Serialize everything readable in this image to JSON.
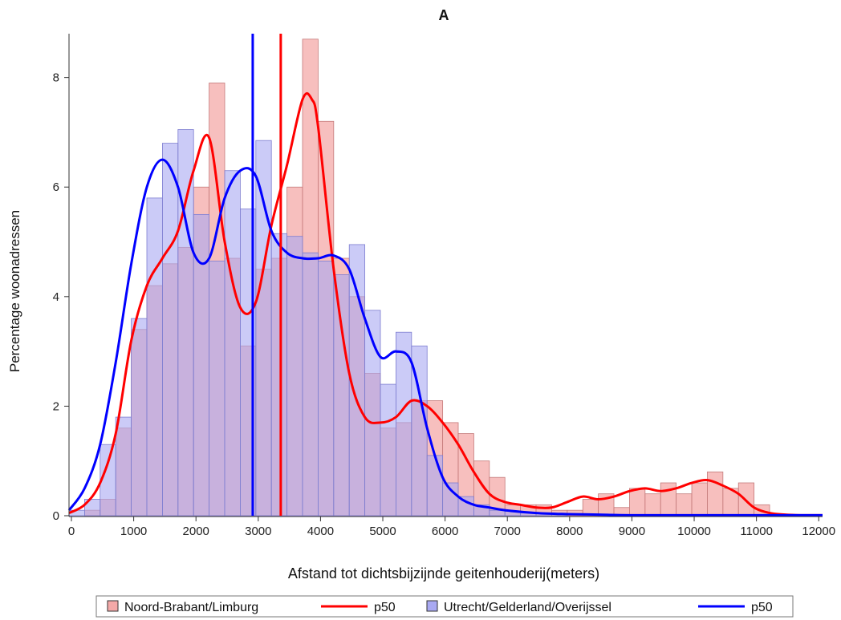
{
  "chart_data": {
    "type": "histogram",
    "title": "A",
    "xlabel": "Afstand tot dichtsbijzijnde geitenhouderij(meters)",
    "ylabel": "Percentage woonadressen",
    "xlim": [
      0,
      12100
    ],
    "ylim": [
      0,
      8.8
    ],
    "xticks": [
      0,
      1000,
      2000,
      3000,
      4000,
      5000,
      6000,
      7000,
      8000,
      9000,
      10000,
      11000,
      12000
    ],
    "yticks": [
      0,
      2,
      4,
      6,
      8
    ],
    "bin_width": 250,
    "legend_position": "bottom",
    "legend": [
      {
        "label": "Noord-Brabant/Limburg",
        "kind": "box",
        "color": "#f4a9a8"
      },
      {
        "label": "p50",
        "kind": "line",
        "color": "#ff0000"
      },
      {
        "label": "Utrecht/Gelderland/Overijssel",
        "kind": "box",
        "color": "#a9a9f2"
      },
      {
        "label": "p50",
        "kind": "line",
        "color": "#0000ff"
      }
    ],
    "series": [
      {
        "name": "Noord-Brabant/Limburg",
        "color": "#f4a9a8",
        "line_color": "#ff0000",
        "bins_start": [
          0,
          250,
          500,
          750,
          1000,
          1250,
          1500,
          1750,
          2000,
          2250,
          2500,
          2750,
          3000,
          3250,
          3500,
          3750,
          4000,
          4250,
          4500,
          4750,
          5000,
          5250,
          5500,
          5750,
          6000,
          6250,
          6500,
          6750,
          7000,
          7250,
          7500,
          7750,
          8000,
          8250,
          8500,
          8750,
          9000,
          9250,
          9500,
          9750,
          10000,
          10250,
          10500,
          10750,
          11000,
          11250
        ],
        "values": [
          0,
          0.1,
          0.3,
          1.6,
          3.4,
          4.2,
          4.6,
          4.9,
          6.0,
          7.9,
          4.7,
          3.1,
          4.5,
          4.7,
          6.0,
          8.7,
          7.2,
          4.7,
          4.0,
          2.6,
          1.6,
          1.7,
          2.1,
          2.1,
          1.7,
          1.5,
          1.0,
          0.7,
          0.2,
          0.2,
          0.2,
          0.1,
          0.1,
          0.3,
          0.4,
          0.15,
          0.5,
          0.4,
          0.6,
          0.4,
          0.6,
          0.8,
          0.5,
          0.6,
          0.2,
          0
        ],
        "median": 3400,
        "density": {
          "x": [
            0,
            250,
            500,
            750,
            1000,
            1250,
            1500,
            1750,
            2000,
            2250,
            2500,
            2750,
            3000,
            3250,
            3500,
            3750,
            3900,
            4000,
            4250,
            4500,
            4750,
            5000,
            5250,
            5500,
            5750,
            6000,
            6250,
            6500,
            6750,
            7000,
            7250,
            7500,
            7750,
            8000,
            8250,
            8500,
            8750,
            9000,
            9250,
            9500,
            9750,
            10000,
            10250,
            10500,
            10750,
            11000,
            11250,
            11500,
            11750,
            12100
          ],
          "y": [
            0.05,
            0.2,
            0.6,
            1.5,
            3.2,
            4.2,
            4.7,
            5.2,
            6.3,
            6.9,
            5.0,
            3.8,
            3.9,
            5.3,
            6.4,
            7.6,
            7.6,
            7.1,
            4.5,
            2.6,
            1.8,
            1.7,
            1.8,
            2.1,
            2.0,
            1.7,
            1.3,
            0.8,
            0.4,
            0.25,
            0.2,
            0.15,
            0.15,
            0.25,
            0.35,
            0.3,
            0.35,
            0.45,
            0.5,
            0.45,
            0.5,
            0.6,
            0.65,
            0.55,
            0.4,
            0.15,
            0.05,
            0.02,
            0.01,
            0.01
          ]
        }
      },
      {
        "name": "Utrecht/Gelderland/Overijssel",
        "color": "#a9a9f2",
        "line_color": "#0000ff",
        "bins_start": [
          0,
          250,
          500,
          750,
          1000,
          1250,
          1500,
          1750,
          2000,
          2250,
          2500,
          2750,
          3000,
          3250,
          3500,
          3750,
          4000,
          4250,
          4500,
          4750,
          5000,
          5250,
          5500,
          5750,
          6000,
          6250,
          6500,
          6750,
          7000,
          7250,
          7500,
          7750
        ],
        "values": [
          0.1,
          0.3,
          1.3,
          1.8,
          3.6,
          5.8,
          6.8,
          7.05,
          5.5,
          4.65,
          6.3,
          5.6,
          6.85,
          5.15,
          5.1,
          4.8,
          4.65,
          4.4,
          4.95,
          3.75,
          2.4,
          3.35,
          3.1,
          1.1,
          0.6,
          0.35,
          0.2,
          0.1,
          0.08,
          0.05,
          0.05,
          0.03
        ],
        "median": 2950,
        "density": {
          "x": [
            0,
            250,
            500,
            750,
            1000,
            1250,
            1500,
            1750,
            2000,
            2250,
            2500,
            2750,
            3000,
            3250,
            3500,
            3750,
            4000,
            4250,
            4500,
            4750,
            5000,
            5250,
            5500,
            5750,
            6000,
            6250,
            6500,
            6750,
            7000,
            7500,
            8000,
            8500,
            9000,
            10000,
            11000,
            12100
          ],
          "y": [
            0.1,
            0.5,
            1.3,
            2.8,
            4.6,
            6.0,
            6.5,
            6.0,
            4.8,
            4.7,
            5.8,
            6.3,
            6.2,
            5.2,
            4.8,
            4.7,
            4.7,
            4.75,
            4.5,
            3.6,
            2.9,
            3.0,
            2.8,
            1.6,
            0.7,
            0.35,
            0.2,
            0.15,
            0.1,
            0.05,
            0.03,
            0.02,
            0.01,
            0.01,
            0.01,
            0.01
          ]
        }
      }
    ]
  }
}
